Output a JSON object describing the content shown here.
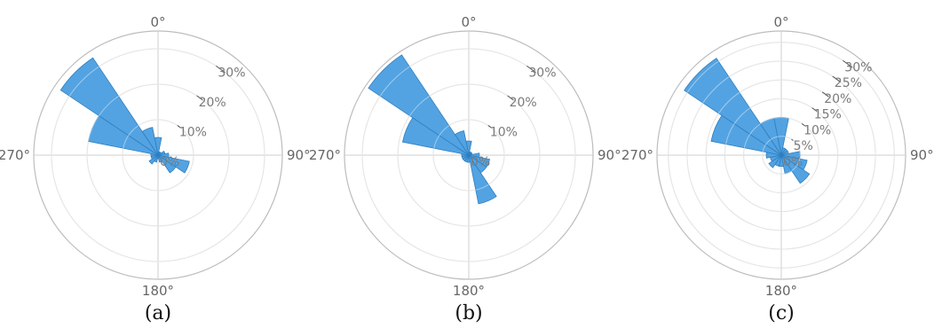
{
  "colors": {
    "bar_fill": "#4a9ee0",
    "bar_edge": "#2f7fc0",
    "grid": "#cfcfcf",
    "axis": "#bdbdbd"
  },
  "chart_data": [
    {
      "type": "polar-bar",
      "caption": "(a)",
      "angle_labels": [
        "0°",
        "90°",
        "180°",
        "270°"
      ],
      "radial_ticks": [
        0,
        10,
        20,
        30
      ],
      "radial_tick_labels": [
        "0%",
        "10%",
        "20%",
        "30%"
      ],
      "rlim": [
        0,
        35
      ],
      "bins": [
        {
          "direction": 0,
          "width": 22.5,
          "value": 5
        },
        {
          "direction": 22.5,
          "width": 22.5,
          "value": 1
        },
        {
          "direction": 45,
          "width": 22.5,
          "value": 1
        },
        {
          "direction": 67.5,
          "width": 22.5,
          "value": 2
        },
        {
          "direction": 90,
          "width": 22.5,
          "value": 3
        },
        {
          "direction": 112.5,
          "width": 22.5,
          "value": 9
        },
        {
          "direction": 135,
          "width": 22.5,
          "value": 6
        },
        {
          "direction": 157.5,
          "width": 22.5,
          "value": 2
        },
        {
          "direction": 180,
          "width": 22.5,
          "value": 1
        },
        {
          "direction": 202.5,
          "width": 22.5,
          "value": 2
        },
        {
          "direction": 225,
          "width": 22.5,
          "value": 3
        },
        {
          "direction": 247.5,
          "width": 22.5,
          "value": 2
        },
        {
          "direction": 270,
          "width": 22.5,
          "value": 2
        },
        {
          "direction": 292.5,
          "width": 22.5,
          "value": 20
        },
        {
          "direction": 315,
          "width": 22.5,
          "value": 33
        },
        {
          "direction": 337.5,
          "width": 22.5,
          "value": 8
        }
      ]
    },
    {
      "type": "polar-bar",
      "caption": "(b)",
      "angle_labels": [
        "0°",
        "90°",
        "180°",
        "270°"
      ],
      "radial_ticks": [
        0,
        10,
        20,
        30
      ],
      "radial_tick_labels": [
        "0%",
        "10%",
        "20%",
        "30%"
      ],
      "rlim": [
        0,
        35
      ],
      "bins": [
        {
          "direction": 0,
          "width": 22.5,
          "value": 4
        },
        {
          "direction": 22.5,
          "width": 22.5,
          "value": 1
        },
        {
          "direction": 45,
          "width": 22.5,
          "value": 1
        },
        {
          "direction": 67.5,
          "width": 22.5,
          "value": 1
        },
        {
          "direction": 90,
          "width": 22.5,
          "value": 3
        },
        {
          "direction": 112.5,
          "width": 22.5,
          "value": 6
        },
        {
          "direction": 135,
          "width": 22.5,
          "value": 6
        },
        {
          "direction": 157.5,
          "width": 22.5,
          "value": 14
        },
        {
          "direction": 180,
          "width": 22.5,
          "value": 2
        },
        {
          "direction": 202.5,
          "width": 22.5,
          "value": 2
        },
        {
          "direction": 225,
          "width": 22.5,
          "value": 2
        },
        {
          "direction": 247.5,
          "width": 22.5,
          "value": 2
        },
        {
          "direction": 270,
          "width": 22.5,
          "value": 2
        },
        {
          "direction": 292.5,
          "width": 22.5,
          "value": 19
        },
        {
          "direction": 315,
          "width": 22.5,
          "value": 34
        },
        {
          "direction": 337.5,
          "width": 22.5,
          "value": 7
        }
      ]
    },
    {
      "type": "polar-bar",
      "caption": "(c)",
      "angle_labels": [
        "0°",
        "90°",
        "180°",
        "270°"
      ],
      "radial_ticks": [
        0,
        5,
        10,
        15,
        20,
        25,
        30
      ],
      "radial_tick_labels": [
        "0%",
        "5%",
        "10%",
        "15%",
        "20%",
        "25%",
        "30%"
      ],
      "rlim": [
        0,
        33
      ],
      "bins": [
        {
          "direction": 0,
          "width": 22.5,
          "value": 10
        },
        {
          "direction": 22.5,
          "width": 22.5,
          "value": 2
        },
        {
          "direction": 45,
          "width": 22.5,
          "value": 2
        },
        {
          "direction": 67.5,
          "width": 22.5,
          "value": 2
        },
        {
          "direction": 90,
          "width": 22.5,
          "value": 5
        },
        {
          "direction": 112.5,
          "width": 22.5,
          "value": 7
        },
        {
          "direction": 135,
          "width": 22.5,
          "value": 9
        },
        {
          "direction": 157.5,
          "width": 22.5,
          "value": 5
        },
        {
          "direction": 180,
          "width": 22.5,
          "value": 3
        },
        {
          "direction": 202.5,
          "width": 22.5,
          "value": 3
        },
        {
          "direction": 225,
          "width": 22.5,
          "value": 4
        },
        {
          "direction": 247.5,
          "width": 22.5,
          "value": 3
        },
        {
          "direction": 270,
          "width": 22.5,
          "value": 4
        },
        {
          "direction": 292.5,
          "width": 22.5,
          "value": 19
        },
        {
          "direction": 315,
          "width": 22.5,
          "value": 31
        },
        {
          "direction": 337.5,
          "width": 22.5,
          "value": 10
        }
      ]
    }
  ]
}
